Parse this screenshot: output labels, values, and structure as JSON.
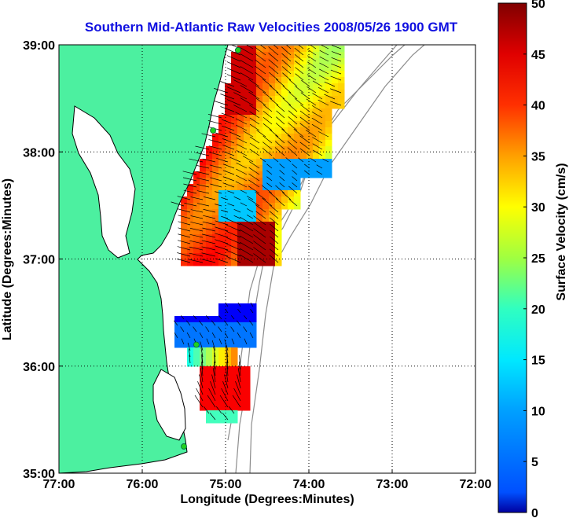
{
  "title": "Southern Mid-Atlantic Raw Velocities 2008/05/26 1900 GMT",
  "xlabel": "Longitude (Degrees:Minutes)",
  "ylabel": "Latitude (Degrees:Minutes)",
  "x_ticks": [
    "77:00",
    "76:00",
    "75:00",
    "74:00",
    "73:00",
    "72:00"
  ],
  "y_ticks": [
    "39:00",
    "38:00",
    "37:00",
    "36:00",
    "35:00"
  ],
  "colorbar": {
    "label": "Surface Velocity (cm/s)",
    "ticks": [
      "0",
      "5",
      "10",
      "15",
      "20",
      "25",
      "30",
      "35",
      "40",
      "45",
      "50"
    ],
    "min": 0,
    "max": 50,
    "colormap": "jet"
  },
  "map": {
    "lon_range": [
      -77,
      -72
    ],
    "lat_range": [
      35,
      39
    ],
    "grid": "dotted",
    "land_color": "#4cf0a0",
    "coast_color": "#000000",
    "bathymetry_color": "#8c8c8c",
    "station_color": "#20d020"
  },
  "chart_data": {
    "type": "heatmap",
    "title": "Southern Mid-Atlantic Raw Velocities 2008/05/26 1900 GMT",
    "xlabel": "Longitude (Degrees:Minutes)",
    "ylabel": "Latitude (Degrees:Minutes)",
    "xlim": [
      -77,
      -72
    ],
    "ylim": [
      35,
      39
    ],
    "clim": [
      0,
      50
    ],
    "colorbar_label": "Surface Velocity (cm/s)",
    "field": "surface current velocity vectors colored by speed",
    "regions": [
      {
        "name": "northern",
        "lon_range": [
          -75.6,
          -73.7
        ],
        "lat_range": [
          36.95,
          38.95
        ],
        "speed_range_cms": [
          10,
          50
        ]
      },
      {
        "name": "southern",
        "lon_range": [
          -75.6,
          -74.6
        ],
        "lat_range": [
          35.45,
          36.6
        ],
        "speed_range_cms": [
          5,
          50
        ]
      }
    ],
    "stations": [
      {
        "lon": -74.85,
        "lat": 38.95
      },
      {
        "lon": -75.15,
        "lat": 38.2
      },
      {
        "lon": -75.35,
        "lat": 36.2
      },
      {
        "lon": -75.5,
        "lat": 35.25
      }
    ]
  }
}
